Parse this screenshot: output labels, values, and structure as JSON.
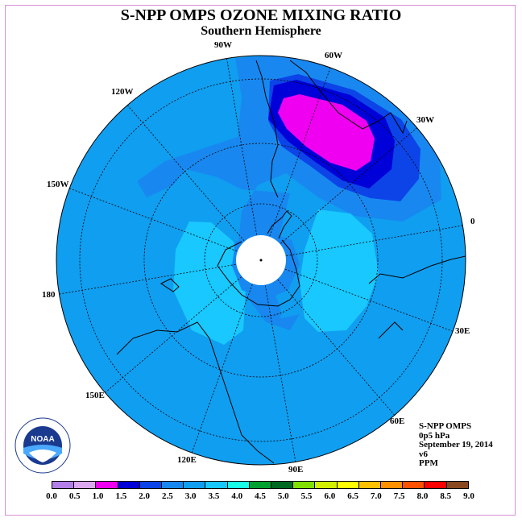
{
  "header": {
    "title": "S-NPP OMPS OZONE MIXING RATIO",
    "subtitle": "Southern Hemisphere"
  },
  "map": {
    "projection": "south polar stereographic",
    "longitude_labels": [
      "90W",
      "60W",
      "30W",
      "0",
      "30E",
      "60E",
      "90E",
      "120E",
      "150E",
      "180",
      "150W",
      "120W"
    ],
    "colors": {
      "ocean_background": "#109ef0",
      "low_region": "#1888f0",
      "mid_region": "#0c44e8",
      "high_region": "#0000d8",
      "peak_region": "#f000f0",
      "light_region": "#18c8ff",
      "polar_hole": "#ffffff",
      "coastline": "#000000"
    }
  },
  "info": {
    "instrument": "S-NPP OMPS",
    "level": "0p5 hPa",
    "date": "September 19, 2014",
    "version": "v6",
    "units": "PPM"
  },
  "colorbar": {
    "ticks": [
      "0.0",
      "0.5",
      "1.0",
      "1.5",
      "2.0",
      "2.5",
      "3.0",
      "3.5",
      "4.0",
      "4.5",
      "5.0",
      "5.5",
      "6.0",
      "6.5",
      "7.0",
      "7.5",
      "8.0",
      "8.5",
      "9.0"
    ],
    "colors": [
      "#b27fe8",
      "#dca8f0",
      "#f000f0",
      "#0000d8",
      "#0c44e8",
      "#1888f0",
      "#109ef0",
      "#18c8ff",
      "#18ffe8",
      "#00a030",
      "#006820",
      "#80e000",
      "#d0f000",
      "#ffff00",
      "#ffc000",
      "#ff9000",
      "#ff5000",
      "#ff0000",
      "#8a4820"
    ]
  },
  "logo": {
    "text": "NOAA",
    "ring_text": "NATIONAL OCEANIC AND ATMOSPHERIC ADMINISTRATION · U.S. DEPARTMENT OF COMMERCE"
  }
}
